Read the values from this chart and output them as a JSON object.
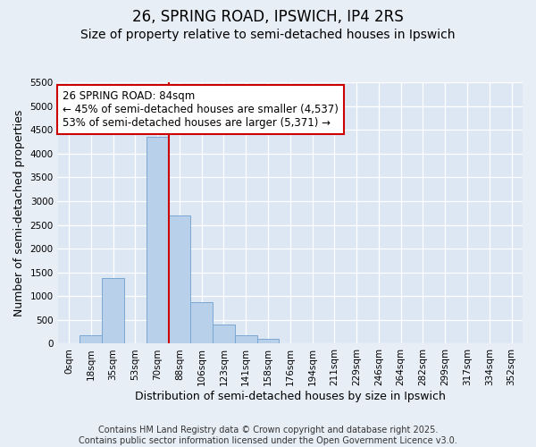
{
  "title_line1": "26, SPRING ROAD, IPSWICH, IP4 2RS",
  "title_line2": "Size of property relative to semi-detached houses in Ipswich",
  "xlabel": "Distribution of semi-detached houses by size in Ipswich",
  "ylabel": "Number of semi-detached properties",
  "categories": [
    "0sqm",
    "18sqm",
    "35sqm",
    "53sqm",
    "70sqm",
    "88sqm",
    "106sqm",
    "123sqm",
    "141sqm",
    "158sqm",
    "176sqm",
    "194sqm",
    "211sqm",
    "229sqm",
    "246sqm",
    "264sqm",
    "282sqm",
    "299sqm",
    "317sqm",
    "334sqm",
    "352sqm"
  ],
  "values": [
    10,
    170,
    1380,
    0,
    4350,
    2700,
    870,
    400,
    170,
    100,
    0,
    0,
    0,
    0,
    0,
    0,
    0,
    0,
    0,
    0,
    0
  ],
  "bar_color": "#b8d0ea",
  "bar_edge_color": "#7aa8d4",
  "vline_color": "#cc0000",
  "vline_index": 5,
  "annotation_text_line1": "26 SPRING ROAD: 84sqm",
  "annotation_text_line2": "← 45% of semi-detached houses are smaller (4,537)",
  "annotation_text_line3": "53% of semi-detached houses are larger (5,371) →",
  "box_edge_color": "#cc0000",
  "ylim_max": 5500,
  "yticks": [
    0,
    500,
    1000,
    1500,
    2000,
    2500,
    3000,
    3500,
    4000,
    4500,
    5000,
    5500
  ],
  "footer": "Contains HM Land Registry data © Crown copyright and database right 2025.\nContains public sector information licensed under the Open Government Licence v3.0.",
  "fig_bg_color": "#e8eef6",
  "plot_bg_color": "#dde7f3",
  "grid_color": "#ffffff",
  "title_fontsize": 12,
  "subtitle_fontsize": 10,
  "axis_label_fontsize": 9,
  "tick_fontsize": 7.5,
  "annotation_fontsize": 8.5,
  "footer_fontsize": 7
}
